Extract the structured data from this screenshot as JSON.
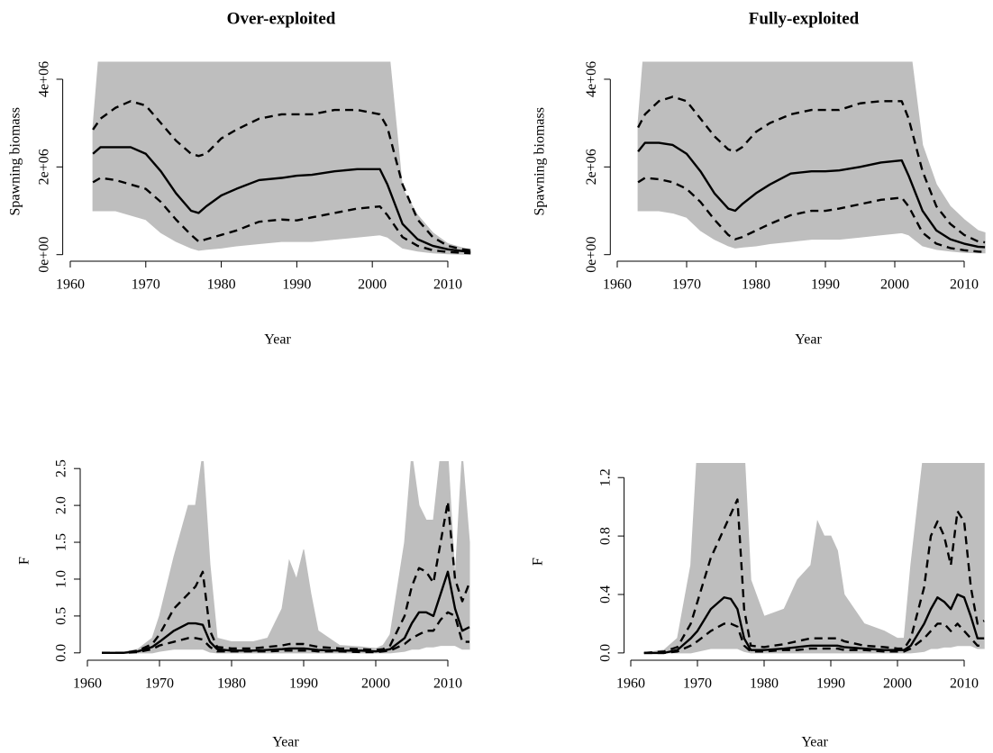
{
  "chart_data": [
    {
      "type": "line",
      "title": "Over-exploited",
      "xlabel": "Year",
      "ylabel": "Spawning biomass",
      "x": [
        1963,
        1964,
        1966,
        1968,
        1970,
        1972,
        1974,
        1976,
        1977,
        1978,
        1980,
        1982,
        1985,
        1988,
        1990,
        1992,
        1995,
        1998,
        2001,
        2002,
        2004,
        2006,
        2008,
        2010,
        2012,
        2013
      ],
      "xlim": [
        1959,
        2014
      ],
      "xticks": [
        1960,
        1970,
        1980,
        1990,
        2000,
        2010
      ],
      "ylim": [
        -150000,
        4400000
      ],
      "yticks": [
        {
          "value": 0,
          "label": "0e+00"
        },
        {
          "value": 2000000,
          "label": "2e+06"
        },
        {
          "value": 4000000,
          "label": "4e+06"
        }
      ],
      "band": {
        "color": "#bebebe",
        "upper": [
          2900000,
          5000000,
          5000000,
          5000000,
          5000000,
          5000000,
          5000000,
          5000000,
          5000000,
          5000000,
          5000000,
          5000000,
          5000000,
          5000000,
          5000000,
          5000000,
          5000000,
          5000000,
          5000000,
          5000000,
          1500000,
          900000,
          500000,
          250000,
          150000,
          120000
        ],
        "lower": [
          1000000,
          1000000,
          1000000,
          900000,
          800000,
          500000,
          300000,
          150000,
          100000,
          120000,
          150000,
          200000,
          250000,
          300000,
          300000,
          300000,
          350000,
          400000,
          450000,
          400000,
          150000,
          80000,
          40000,
          20000,
          10000,
          10000
        ]
      },
      "series": [
        {
          "color": "#000000",
          "dash": false,
          "values": [
            2300000,
            2450000,
            2450000,
            2450000,
            2300000,
            1900000,
            1400000,
            1000000,
            950000,
            1100000,
            1350000,
            1500000,
            1700000,
            1750000,
            1800000,
            1820000,
            1900000,
            1950000,
            1950000,
            1600000,
            700000,
            350000,
            200000,
            120000,
            80000,
            60000
          ]
        },
        {
          "color": "#000000",
          "dash": true,
          "values": [
            2850000,
            3100000,
            3350000,
            3500000,
            3400000,
            3000000,
            2600000,
            2300000,
            2250000,
            2300000,
            2650000,
            2850000,
            3100000,
            3200000,
            3200000,
            3200000,
            3300000,
            3300000,
            3200000,
            2900000,
            1600000,
            800000,
            400000,
            200000,
            120000,
            100000
          ]
        },
        {
          "color": "#000000",
          "dash": true,
          "values": [
            1650000,
            1750000,
            1700000,
            1600000,
            1500000,
            1200000,
            800000,
            450000,
            300000,
            350000,
            450000,
            550000,
            750000,
            800000,
            780000,
            850000,
            950000,
            1050000,
            1100000,
            900000,
            400000,
            200000,
            100000,
            60000,
            40000,
            30000
          ]
        }
      ]
    },
    {
      "type": "line",
      "title": "Fully-exploited",
      "xlabel": "Year",
      "ylabel": "Spawning biomass",
      "x": [
        1963,
        1964,
        1966,
        1968,
        1970,
        1972,
        1974,
        1976,
        1977,
        1978,
        1980,
        1982,
        1985,
        1988,
        1990,
        1992,
        1995,
        1998,
        2001,
        2002,
        2004,
        2006,
        2008,
        2010,
        2012,
        2013
      ],
      "xlim": [
        1959,
        2014
      ],
      "xticks": [
        1960,
        1970,
        1980,
        1990,
        2000,
        2010
      ],
      "ylim": [
        -150000,
        4400000
      ],
      "yticks": [
        {
          "value": 0,
          "label": "0e+00"
        },
        {
          "value": 2000000,
          "label": "2e+06"
        },
        {
          "value": 4000000,
          "label": "4e+06"
        }
      ],
      "band": {
        "color": "#bebebe",
        "upper": [
          3000000,
          5000000,
          5000000,
          5000000,
          5000000,
          5000000,
          5000000,
          5000000,
          5000000,
          5000000,
          5000000,
          5000000,
          5000000,
          5000000,
          5000000,
          5000000,
          5000000,
          5000000,
          5000000,
          5000000,
          2500000,
          1600000,
          1100000,
          800000,
          550000,
          500000
        ],
        "lower": [
          1000000,
          1000000,
          1000000,
          950000,
          850000,
          550000,
          350000,
          200000,
          150000,
          170000,
          200000,
          250000,
          300000,
          350000,
          350000,
          350000,
          400000,
          450000,
          500000,
          450000,
          200000,
          120000,
          80000,
          50000,
          40000,
          40000
        ]
      },
      "series": [
        {
          "color": "#000000",
          "dash": false,
          "values": [
            2350000,
            2550000,
            2550000,
            2500000,
            2300000,
            1900000,
            1400000,
            1050000,
            1000000,
            1150000,
            1400000,
            1600000,
            1850000,
            1900000,
            1900000,
            1920000,
            2000000,
            2100000,
            2150000,
            1800000,
            1000000,
            550000,
            350000,
            250000,
            180000,
            170000
          ]
        },
        {
          "color": "#000000",
          "dash": true,
          "values": [
            2900000,
            3200000,
            3500000,
            3600000,
            3500000,
            3100000,
            2700000,
            2400000,
            2350000,
            2450000,
            2800000,
            3000000,
            3200000,
            3300000,
            3300000,
            3300000,
            3450000,
            3500000,
            3500000,
            3100000,
            1900000,
            1100000,
            700000,
            450000,
            300000,
            280000
          ]
        },
        {
          "color": "#000000",
          "dash": true,
          "values": [
            1650000,
            1750000,
            1720000,
            1650000,
            1500000,
            1200000,
            800000,
            450000,
            350000,
            400000,
            550000,
            700000,
            900000,
            1000000,
            1000000,
            1050000,
            1150000,
            1250000,
            1300000,
            1100000,
            500000,
            250000,
            150000,
            100000,
            70000,
            60000
          ]
        }
      ]
    },
    {
      "type": "line",
      "xlabel": "Year",
      "ylabel": "F",
      "x": [
        1962,
        1965,
        1967,
        1969,
        1970,
        1972,
        1974,
        1975,
        1976,
        1977,
        1978,
        1980,
        1983,
        1985,
        1987,
        1988,
        1989,
        1990,
        1991,
        1992,
        1995,
        1998,
        2000,
        2001,
        2002,
        2004,
        2005,
        2006,
        2007,
        2008,
        2009,
        2010,
        2011,
        2012,
        2013
      ],
      "xlim": [
        1959,
        2014
      ],
      "xticks": [
        1960,
        1970,
        1980,
        1990,
        2000,
        2010
      ],
      "ylim": [
        -0.1,
        2.6
      ],
      "yticks": [
        {
          "value": 0,
          "label": "0.0"
        },
        0.5,
        {
          "value": 1,
          "label": "1.0"
        },
        1.5,
        {
          "value": 2,
          "label": "2.0"
        },
        2.5
      ],
      "band": {
        "color": "#bebebe",
        "upper": [
          0,
          0.01,
          0.05,
          0.2,
          0.5,
          1.3,
          2.0,
          2.0,
          2.7,
          1.2,
          0.2,
          0.15,
          0.15,
          0.2,
          0.6,
          1.25,
          1.0,
          1.4,
          0.8,
          0.3,
          0.1,
          0.08,
          0.06,
          0.1,
          0.25,
          1.5,
          2.7,
          2.0,
          1.8,
          1.8,
          2.7,
          2.7,
          1.0,
          2.7,
          1.5
        ],
        "lower": [
          0,
          0,
          0,
          0,
          0.02,
          0.05,
          0.05,
          0.05,
          0.05,
          0.01,
          0,
          0,
          0,
          0,
          0,
          0,
          0,
          0,
          0,
          0,
          0,
          0,
          0,
          0,
          0,
          0.02,
          0.05,
          0.05,
          0.08,
          0.08,
          0.1,
          0.1,
          0.1,
          0.05,
          0.05
        ]
      },
      "series": [
        {
          "color": "#000000",
          "dash": false,
          "values": [
            0,
            0,
            0.02,
            0.08,
            0.15,
            0.3,
            0.4,
            0.4,
            0.38,
            0.15,
            0.05,
            0.03,
            0.03,
            0.04,
            0.05,
            0.06,
            0.06,
            0.06,
            0.05,
            0.04,
            0.03,
            0.03,
            0.02,
            0.03,
            0.05,
            0.2,
            0.4,
            0.55,
            0.55,
            0.5,
            0.8,
            1.1,
            0.6,
            0.3,
            0.35
          ]
        },
        {
          "color": "#000000",
          "dash": true,
          "values": [
            0,
            0,
            0.03,
            0.12,
            0.25,
            0.6,
            0.8,
            0.9,
            1.1,
            0.3,
            0.08,
            0.06,
            0.06,
            0.08,
            0.1,
            0.12,
            0.12,
            0.12,
            0.1,
            0.08,
            0.06,
            0.05,
            0.04,
            0.05,
            0.1,
            0.5,
            0.9,
            1.15,
            1.1,
            0.95,
            1.5,
            2.05,
            1.0,
            0.7,
            0.95
          ]
        },
        {
          "color": "#000000",
          "dash": true,
          "values": [
            0,
            0,
            0.01,
            0.05,
            0.1,
            0.15,
            0.2,
            0.2,
            0.18,
            0.08,
            0.02,
            0.02,
            0.02,
            0.02,
            0.03,
            0.03,
            0.03,
            0.03,
            0.03,
            0.02,
            0.02,
            0.01,
            0.01,
            0.02,
            0.03,
            0.12,
            0.2,
            0.25,
            0.3,
            0.3,
            0.45,
            0.55,
            0.5,
            0.15,
            0.15
          ]
        }
      ]
    },
    {
      "type": "line",
      "xlabel": "Year",
      "ylabel": "F",
      "x": [
        1962,
        1965,
        1967,
        1969,
        1970,
        1972,
        1974,
        1975,
        1976,
        1977,
        1978,
        1980,
        1983,
        1985,
        1987,
        1988,
        1989,
        1990,
        1991,
        1992,
        1995,
        1998,
        2000,
        2001,
        2002,
        2004,
        2005,
        2006,
        2007,
        2008,
        2009,
        2010,
        2011,
        2012,
        2013
      ],
      "xlim": [
        1959,
        2014
      ],
      "xticks": [
        1960,
        1970,
        1980,
        1990,
        2000,
        2010
      ],
      "ylim": [
        -0.05,
        1.3
      ],
      "yticks": [
        {
          "value": 0,
          "label": "0.0"
        },
        0.4,
        0.8,
        1.2
      ],
      "band": {
        "color": "#bebebe",
        "upper": [
          0,
          0.02,
          0.1,
          0.6,
          1.4,
          1.4,
          1.4,
          1.4,
          1.4,
          1.4,
          0.5,
          0.25,
          0.3,
          0.5,
          0.6,
          0.9,
          0.8,
          0.8,
          0.7,
          0.4,
          0.2,
          0.15,
          0.1,
          0.1,
          0.6,
          1.4,
          1.4,
          1.4,
          1.4,
          1.4,
          1.4,
          1.4,
          1.4,
          1.4,
          1.4
        ],
        "lower": [
          0,
          0,
          0,
          0,
          0.01,
          0.03,
          0.03,
          0.03,
          0.03,
          0.01,
          0,
          0,
          0,
          0,
          0,
          0,
          0,
          0,
          0,
          0,
          0,
          0,
          0,
          0,
          0,
          0.01,
          0.03,
          0.03,
          0.04,
          0.04,
          0.05,
          0.05,
          0.05,
          0.03,
          0.03
        ]
      },
      "series": [
        {
          "color": "#000000",
          "dash": false,
          "values": [
            0,
            0,
            0.02,
            0.1,
            0.15,
            0.3,
            0.38,
            0.37,
            0.3,
            0.1,
            0.02,
            0.02,
            0.03,
            0.04,
            0.05,
            0.05,
            0.05,
            0.05,
            0.05,
            0.04,
            0.03,
            0.02,
            0.02,
            0.02,
            0.05,
            0.2,
            0.3,
            0.38,
            0.35,
            0.3,
            0.4,
            0.38,
            0.25,
            0.1,
            0.1
          ]
        },
        {
          "color": "#000000",
          "dash": true,
          "values": [
            0,
            0.01,
            0.04,
            0.2,
            0.35,
            0.65,
            0.85,
            0.95,
            1.05,
            0.3,
            0.05,
            0.04,
            0.06,
            0.08,
            0.1,
            0.1,
            0.1,
            0.1,
            0.1,
            0.08,
            0.05,
            0.04,
            0.03,
            0.03,
            0.1,
            0.45,
            0.8,
            0.9,
            0.8,
            0.6,
            0.97,
            0.9,
            0.45,
            0.2,
            0.22
          ]
        },
        {
          "color": "#000000",
          "dash": true,
          "values": [
            0,
            0,
            0.01,
            0.05,
            0.08,
            0.15,
            0.2,
            0.2,
            0.18,
            0.05,
            0.01,
            0.01,
            0.02,
            0.02,
            0.03,
            0.03,
            0.03,
            0.03,
            0.03,
            0.02,
            0.02,
            0.01,
            0.01,
            0.01,
            0.03,
            0.1,
            0.15,
            0.2,
            0.2,
            0.15,
            0.2,
            0.15,
            0.1,
            0.05,
            0.05
          ]
        }
      ]
    }
  ]
}
